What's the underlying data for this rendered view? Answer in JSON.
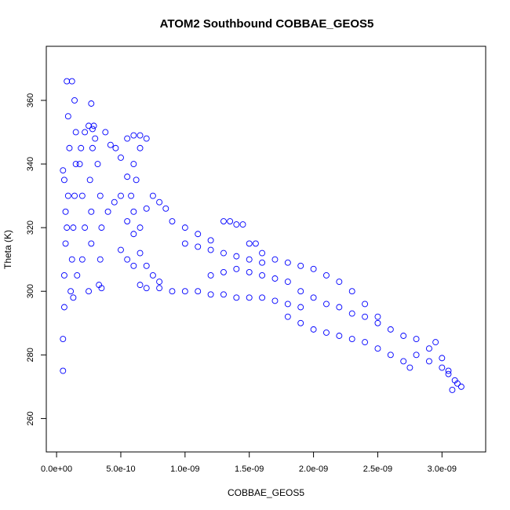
{
  "chart_data": {
    "type": "scatter",
    "title": "ATOM2 Southbound COBBAE_GEOS5",
    "xlabel": "COBBAE_GEOS5",
    "ylabel": "Theta (K)",
    "xlim": [
      0,
      3.3e-09
    ],
    "ylim": [
      250,
      375
    ],
    "xticks": [
      0,
      5e-10,
      1e-09,
      1.5e-09,
      2e-09,
      2.5e-09,
      3e-09
    ],
    "xtick_labels": [
      "0.0e+00",
      "5.0e-10",
      "1.0e-09",
      "1.5e-09",
      "2.0e-09",
      "2.5e-09",
      "3.0e-09"
    ],
    "yticks": [
      260,
      280,
      300,
      320,
      340,
      360
    ],
    "ytick_labels": [
      "260",
      "280",
      "300",
      "320",
      "340",
      "360"
    ],
    "grid": false,
    "marker": "open-circle",
    "color": "#0000ff",
    "series": [
      {
        "points": [
          [
            5e-11,
            275
          ],
          [
            5e-11,
            285
          ],
          [
            6e-11,
            295
          ],
          [
            6e-11,
            305
          ],
          [
            7e-11,
            315
          ],
          [
            7e-11,
            325
          ],
          [
            6e-11,
            335
          ],
          [
            5e-11,
            338
          ],
          [
            8e-11,
            320
          ],
          [
            9e-11,
            330
          ],
          [
            1e-10,
            345
          ],
          [
            9e-11,
            355
          ],
          [
            8e-11,
            366
          ],
          [
            1.2e-10,
            366
          ],
          [
            1.4e-10,
            360
          ],
          [
            1.5e-10,
            350
          ],
          [
            1.5e-10,
            340
          ],
          [
            1.4e-10,
            330
          ],
          [
            1.3e-10,
            320
          ],
          [
            1.2e-10,
            310
          ],
          [
            1.1e-10,
            300
          ],
          [
            1.3e-10,
            298
          ],
          [
            1.6e-10,
            305
          ],
          [
            2e-10,
            310
          ],
          [
            2.2e-10,
            320
          ],
          [
            2e-10,
            330
          ],
          [
            1.8e-10,
            340
          ],
          [
            1.9e-10,
            345
          ],
          [
            2.2e-10,
            350
          ],
          [
            2.5e-10,
            352
          ],
          [
            2.8e-10,
            351
          ],
          [
            3e-10,
            348
          ],
          [
            3.2e-10,
            340
          ],
          [
            3.4e-10,
            330
          ],
          [
            3.5e-10,
            320
          ],
          [
            3.4e-10,
            310
          ],
          [
            3.3e-10,
            302
          ],
          [
            3.5e-10,
            301
          ],
          [
            2.5e-10,
            300
          ],
          [
            2.7e-10,
            315
          ],
          [
            2.7e-10,
            325
          ],
          [
            2.6e-10,
            335
          ],
          [
            2.8e-10,
            345
          ],
          [
            2.7e-10,
            359
          ],
          [
            2.9e-10,
            352
          ],
          [
            3.8e-10,
            350
          ],
          [
            4.2e-10,
            346
          ],
          [
            4.6e-10,
            345
          ],
          [
            5e-10,
            342
          ],
          [
            5.5e-10,
            336
          ],
          [
            5.8e-10,
            330
          ],
          [
            6e-10,
            325
          ],
          [
            5.5e-10,
            348
          ],
          [
            6e-10,
            349
          ],
          [
            6.5e-10,
            349
          ],
          [
            7e-10,
            348
          ],
          [
            6.5e-10,
            345
          ],
          [
            6e-10,
            340
          ],
          [
            6.2e-10,
            335
          ],
          [
            4e-10,
            325
          ],
          [
            4.5e-10,
            328
          ],
          [
            5e-10,
            330
          ],
          [
            5.5e-10,
            322
          ],
          [
            6e-10,
            318
          ],
          [
            6.5e-10,
            320
          ],
          [
            7e-10,
            326
          ],
          [
            7.5e-10,
            330
          ],
          [
            8e-10,
            328
          ],
          [
            8.5e-10,
            326
          ],
          [
            9e-10,
            322
          ],
          [
            1e-09,
            320
          ],
          [
            1.1e-09,
            318
          ],
          [
            1.2e-09,
            316
          ],
          [
            5e-10,
            313
          ],
          [
            5.5e-10,
            310
          ],
          [
            6e-10,
            308
          ],
          [
            6.5e-10,
            312
          ],
          [
            7e-10,
            308
          ],
          [
            7.5e-10,
            305
          ],
          [
            8e-10,
            303
          ],
          [
            6.5e-10,
            302
          ],
          [
            7e-10,
            301
          ],
          [
            8e-10,
            301
          ],
          [
            9e-10,
            300
          ],
          [
            1e-09,
            300
          ],
          [
            1.1e-09,
            300
          ],
          [
            1.2e-09,
            299
          ],
          [
            1.3e-09,
            299
          ],
          [
            1.4e-09,
            298
          ],
          [
            1.5e-09,
            298
          ],
          [
            1.6e-09,
            298
          ],
          [
            1.7e-09,
            297
          ],
          [
            1.8e-09,
            296
          ],
          [
            1.9e-09,
            295
          ],
          [
            1.3e-09,
            322
          ],
          [
            1.35e-09,
            322
          ],
          [
            1.4e-09,
            321
          ],
          [
            1.45e-09,
            321
          ],
          [
            1.5e-09,
            315
          ],
          [
            1.55e-09,
            315
          ],
          [
            1.6e-09,
            312
          ],
          [
            1e-09,
            315
          ],
          [
            1.1e-09,
            314
          ],
          [
            1.2e-09,
            313
          ],
          [
            1.3e-09,
            312
          ],
          [
            1.4e-09,
            311
          ],
          [
            1.5e-09,
            310
          ],
          [
            1.6e-09,
            309
          ],
          [
            1.2e-09,
            305
          ],
          [
            1.3e-09,
            306
          ],
          [
            1.4e-09,
            307
          ],
          [
            1.5e-09,
            306
          ],
          [
            1.6e-09,
            305
          ],
          [
            1.7e-09,
            304
          ],
          [
            1.8e-09,
            303
          ],
          [
            1.7e-09,
            310
          ],
          [
            1.8e-09,
            309
          ],
          [
            1.9e-09,
            308
          ],
          [
            2e-09,
            307
          ],
          [
            2.1e-09,
            305
          ],
          [
            2.2e-09,
            303
          ],
          [
            2.3e-09,
            300
          ],
          [
            1.9e-09,
            300
          ],
          [
            2e-09,
            298
          ],
          [
            2.1e-09,
            296
          ],
          [
            2.2e-09,
            295
          ],
          [
            2.3e-09,
            293
          ],
          [
            2.4e-09,
            292
          ],
          [
            2.5e-09,
            290
          ],
          [
            1.8e-09,
            292
          ],
          [
            1.9e-09,
            290
          ],
          [
            2e-09,
            288
          ],
          [
            2.1e-09,
            287
          ],
          [
            2.2e-09,
            286
          ],
          [
            2.3e-09,
            285
          ],
          [
            2.4e-09,
            284
          ],
          [
            2.4e-09,
            296
          ],
          [
            2.5e-09,
            292
          ],
          [
            2.6e-09,
            288
          ],
          [
            2.7e-09,
            286
          ],
          [
            2.8e-09,
            285
          ],
          [
            2.9e-09,
            282
          ],
          [
            3e-09,
            279
          ],
          [
            2.5e-09,
            282
          ],
          [
            2.6e-09,
            280
          ],
          [
            2.7e-09,
            278
          ],
          [
            2.75e-09,
            276
          ],
          [
            2.8e-09,
            280
          ],
          [
            2.9e-09,
            278
          ],
          [
            3e-09,
            276
          ],
          [
            3.05e-09,
            274
          ],
          [
            3.1e-09,
            272
          ],
          [
            3.12e-09,
            271
          ],
          [
            3.15e-09,
            270
          ],
          [
            3.08e-09,
            269
          ],
          [
            3.05e-09,
            275
          ],
          [
            2.95e-09,
            284
          ]
        ]
      }
    ]
  }
}
